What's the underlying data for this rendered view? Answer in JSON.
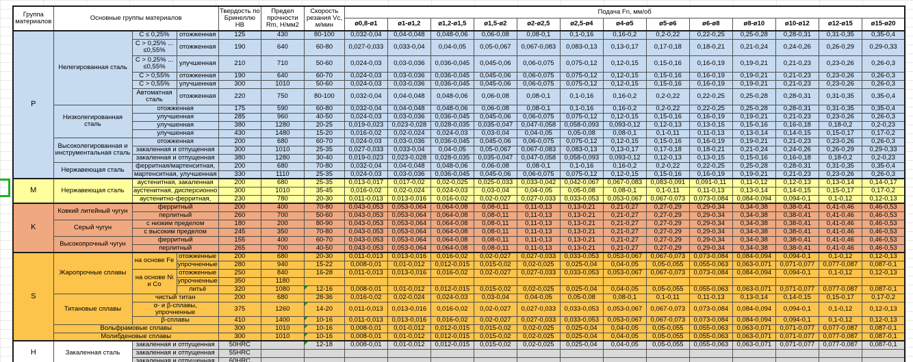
{
  "header": {
    "col_group": "Группа материалов",
    "col_main": "Основные группы материалов",
    "col_hardness": "Твердость по Бринеллю HB",
    "col_strength": "Предел прочности Rm, Н/мм2",
    "col_speed": "Скорость резания Vc, м/мин",
    "feed_title": "Подача Fn, мм/об",
    "diameters": [
      "ø0,8-ø1",
      "ø1-ø1,2",
      "ø1,2-ø1,5",
      "ø1,5-ø2",
      "ø2-ø2,5",
      "ø2,5-ø4",
      "ø4-ø5",
      "ø5-ø6",
      "ø6-ø8",
      "ø8-ø10",
      "ø10-ø12",
      "ø12-ø15",
      "ø15-ø20"
    ]
  },
  "group_colors": {
    "P": "#c6daf0",
    "M": "#ffff9e",
    "K": "#efa880",
    "S": "#fcc44b",
    "H": "#d9d9d9"
  },
  "flag_color": "#0c9a0c",
  "feed_patterns": {
    "A": [
      "0,032-0,04",
      "0,04-0,048",
      "0,048-0,06",
      "0,06-0,08",
      "0,08-0,1",
      "0,1-0,16",
      "0,16-0,2",
      "0,2-0,22",
      "0,22-0,25",
      "0,25-0,28",
      "0,28-0,31",
      "0,31-0,35",
      "0,35-0,4"
    ],
    "B": [
      "0,027-0,033",
      "0,033-0,04",
      "0,04-0,05",
      "0,05-0,067",
      "0,067-0,083",
      "0,083-0,13",
      "0,13-0,17",
      "0,17-0,18",
      "0,18-0,21",
      "0,21-0,24",
      "0,24-0,26",
      "0,26-0,29",
      "0,29-0,33"
    ],
    "C": [
      "0,024-0,03",
      "0,03-0,036",
      "0,036-0,045",
      "0,045-0,06",
      "0,06-0,075",
      "0,075-0,12",
      "0,12-0,15",
      "0,15-0,16",
      "0,16-0,19",
      "0,19-0,21",
      "0,21-0,23",
      "0,23-0,26",
      "0,26-0,3"
    ],
    "D": [
      "0,019-0,023",
      "0,023-0,028",
      "0,028-0,035",
      "0,035-0,047",
      "0,047-0,058",
      "0,058-0,093",
      "0,093-0,12",
      "0,12-0,13",
      "0,13-0,15",
      "0,15-0,16",
      "0,16-0,18",
      "0,18-0,2",
      "0,2-0,23"
    ],
    "E": [
      "0,016-0,02",
      "0,02-0,024",
      "0,024-0,03",
      "0,03-0,04",
      "0,04-0,05",
      "0,05-0,08",
      "0,08-0,1",
      "0,1-0,11",
      "0,11-0,13",
      "0,13-0,14",
      "0,14-0,15",
      "0,15-0,17",
      "0,17-0,2"
    ],
    "M1": [
      "0,013-0,017",
      "0,017-0,02",
      "0,02-0,025",
      "0,025-0,033",
      "0,033-0,042",
      "0,042-0,067",
      "0,067-0,083",
      "0,083-0,091",
      "0,091-0,11",
      "0,11-0,12",
      "0,12-0,13",
      "0,13-0,14",
      "0,14-0,17"
    ],
    "M3": [
      "0,011-0,013",
      "0,013-0,016",
      "0,016-0,02",
      "0,02-0,027",
      "0,027-0,033",
      "0,033-0,053",
      "0,053-0,067",
      "0,067-0,073",
      "0,073-0,084",
      "0,084-0,094",
      "0,094-0,1",
      "0,1-0,12",
      "0,12-0,13"
    ],
    "K": [
      "0,043-0,053",
      "0,053-0,064",
      "0,064-0,08",
      "0,08-0,11",
      "0,11-0,13",
      "0,13-0,21",
      "0,21-0,27",
      "0,27-0,29",
      "0,29-0,34",
      "0,34-0,38",
      "0,38-0,41",
      "0,41-0,46",
      "0,46-0,53"
    ],
    "S2": [
      "0,008-0,01",
      "0,01-0,012",
      "0,012-0,015",
      "0,015-0,02",
      "0,02-0,025",
      "0,025-0,04",
      "0,04-0,05",
      "0,05-0,055",
      "0,055-0,063",
      "0,063-0,071",
      "0,071-0,077",
      "0,077-0,087",
      "0,087-0,1"
    ],
    "E0": [
      "",
      "",
      "",
      "",
      "",
      "",
      "",
      "",
      "",
      "",
      "",
      "",
      ""
    ]
  },
  "rows": [
    {
      "group": "p",
      "cells": [
        [
          "P",
          15,
          1,
          "g"
        ],
        [
          "Нелегированная сталь",
          6,
          1,
          "n"
        ],
        [
          "C ≤ 0,25%",
          1,
          1,
          "s"
        ],
        [
          "отожженная",
          1,
          1,
          "t"
        ]
      ],
      "hb": "125",
      "rm": "430",
      "vc": "80-100",
      "feed": "A"
    },
    {
      "group": "p",
      "tall": true,
      "cells": [
        [
          "C > 0,25% ...\n≤0,55%",
          1,
          1,
          "s"
        ],
        [
          "отожженная",
          1,
          1,
          "t"
        ]
      ],
      "hb": "190",
      "rm": "640",
      "vc": "60-80",
      "feed": "B"
    },
    {
      "group": "p",
      "tall": true,
      "cells": [
        [
          "C > 0,25% ...\n≤0,55%",
          1,
          1,
          "s"
        ],
        [
          "улучшенная",
          1,
          1,
          "t"
        ]
      ],
      "hb": "210",
      "rm": "710",
      "vc": "50-60",
      "feed": "C"
    },
    {
      "group": "p",
      "cells": [
        [
          "C > 0,55%",
          1,
          1,
          "s"
        ],
        [
          "отожженная",
          1,
          1,
          "t"
        ]
      ],
      "hb": "190",
      "rm": "640",
      "vc": "60-70",
      "feed": "C"
    },
    {
      "group": "p",
      "cells": [
        [
          "C > 0,55%",
          1,
          1,
          "s"
        ],
        [
          "улучшенная",
          1,
          1,
          "t"
        ]
      ],
      "hb": "300",
      "rm": "1010",
      "vc": "50-60",
      "feed": "C"
    },
    {
      "group": "p",
      "tall": true,
      "cells": [
        [
          "Автоматная сталь",
          1,
          1,
          "s"
        ],
        [
          "отожженная",
          1,
          1,
          "t"
        ]
      ],
      "hb": "220",
      "rm": "750",
      "vc": "80-100",
      "feed": "A"
    },
    {
      "group": "p",
      "cells": [
        [
          "Низколегированная сталь",
          4,
          1,
          "n"
        ],
        [
          "отожженная",
          1,
          2,
          "t"
        ]
      ],
      "hb": "175",
      "rm": "590",
      "vc": "60-80",
      "feed": "A"
    },
    {
      "group": "p",
      "cells": [
        [
          "улучшенная",
          1,
          2,
          "t"
        ]
      ],
      "hb": "285",
      "rm": "960",
      "vc": "40-50",
      "feed": "C"
    },
    {
      "group": "p",
      "cells": [
        [
          "улучшенная",
          1,
          2,
          "t"
        ]
      ],
      "hb": "380",
      "rm": "1280",
      "vc": "20-25",
      "feed": "D"
    },
    {
      "group": "p",
      "cells": [
        [
          "улучшенная",
          1,
          2,
          "t"
        ]
      ],
      "hb": "430",
      "rm": "1480",
      "vc": "15-20",
      "feed": "E"
    },
    {
      "group": "p",
      "cells": [
        [
          "Высоколегированная и инструментальная сталь",
          3,
          1,
          "n"
        ],
        [
          "отожженная",
          1,
          2,
          "t"
        ]
      ],
      "hb": "200",
      "rm": "680",
      "vc": "60-70",
      "feed": "C"
    },
    {
      "group": "p",
      "cells": [
        [
          "закаленная и отпущенная",
          1,
          2,
          "t"
        ]
      ],
      "hb": "300",
      "rm": "1010",
      "vc": "25-35",
      "feed": "B"
    },
    {
      "group": "p",
      "cells": [
        [
          "закаленная и отпущенная",
          1,
          2,
          "t"
        ]
      ],
      "hb": "380",
      "rm": "1280",
      "vc": "30-40",
      "feed": "D"
    },
    {
      "group": "p",
      "cells": [
        [
          "Нержавеющая сталь",
          2,
          1,
          "n"
        ],
        [
          "ферритная/мартенситная,",
          1,
          2,
          "t"
        ]
      ],
      "hb": "200",
      "rm": "680",
      "vc": "70-80",
      "feed": "A"
    },
    {
      "group": "p",
      "cells": [
        [
          "мартенситная, улучшенная",
          1,
          2,
          "t"
        ]
      ],
      "hb": "330",
      "rm": "1110",
      "vc": "25-35",
      "feed": "C"
    },
    {
      "group": "m",
      "cells": [
        [
          "M",
          3,
          1,
          "g"
        ],
        [
          "Нержавеющая сталь",
          3,
          1,
          "n"
        ],
        [
          "аустенитная, закаленная",
          1,
          2,
          "t"
        ]
      ],
      "hb": "200",
      "rm": "680",
      "vc": "25-35",
      "feed": "M1"
    },
    {
      "group": "m",
      "cells": [
        [
          "аустенитная, дисперсионно",
          1,
          2,
          "t"
        ]
      ],
      "hb": "300",
      "rm": "1010",
      "vc": "35-45",
      "feed": "E"
    },
    {
      "group": "m",
      "cells": [
        [
          "аустенитно-ферритная,",
          1,
          2,
          "t"
        ]
      ],
      "hb": "230",
      "rm": "780",
      "vc": "20-30",
      "feed": "M3"
    },
    {
      "group": "k",
      "cells": [
        [
          "K",
          6,
          1,
          "g"
        ],
        [
          "Ковкий литейный чугун",
          2,
          1,
          "n"
        ],
        [
          "ферритный",
          1,
          2,
          "t"
        ]
      ],
      "hb": "200",
      "rm": "400",
      "vc": "70-80",
      "feed": "K"
    },
    {
      "group": "k",
      "cells": [
        [
          "перлитный",
          1,
          2,
          "t"
        ]
      ],
      "hb": "260",
      "rm": "700",
      "vc": "50-60",
      "feed": "K"
    },
    {
      "group": "k",
      "cells": [
        [
          "Серый чугун",
          2,
          1,
          "n"
        ],
        [
          "с низким пределом",
          1,
          2,
          "t"
        ]
      ],
      "hb": "180",
      "rm": "200",
      "vc": "80-90",
      "feed": "K"
    },
    {
      "group": "k",
      "cells": [
        [
          "с высоким пределом",
          1,
          2,
          "t"
        ]
      ],
      "hb": "245",
      "rm": "350",
      "vc": "70-80",
      "feed": "K"
    },
    {
      "group": "k",
      "cells": [
        [
          "Высокопрочный чугун",
          2,
          1,
          "n"
        ],
        [
          "ферритный",
          1,
          2,
          "t"
        ]
      ],
      "hb": "155",
      "rm": "400",
      "vc": "60-70",
      "feed": "K"
    },
    {
      "group": "k",
      "cells": [
        [
          "перлитный",
          1,
          2,
          "t"
        ]
      ],
      "hb": "265",
      "rm": "700",
      "vc": "40-50",
      "feed": "K"
    },
    {
      "group": "s",
      "cells": [
        [
          "S",
          10,
          1,
          "g"
        ],
        [
          "Жаропрочные сплавы",
          5,
          1,
          "n"
        ],
        [
          "на основе Fe",
          2,
          1,
          "s"
        ],
        [
          "отожженные",
          1,
          1,
          "t"
        ]
      ],
      "hb": "200",
      "rm": "680",
      "vc": "20-30",
      "feed": "M3"
    },
    {
      "group": "s",
      "cells": [
        [
          "упрочненные",
          1,
          1,
          "t"
        ]
      ],
      "hb": "280",
      "rm": "940",
      "vc": "15-22",
      "feed": "S2"
    },
    {
      "group": "s",
      "cells": [
        [
          "на основе Ni и Co",
          3,
          1,
          "s"
        ],
        [
          "отожженные",
          1,
          1,
          "t"
        ]
      ],
      "hb": "250",
      "rm": "840",
      "vc": "16-28",
      "feed": "M3"
    },
    {
      "group": "s",
      "cells": [
        [
          "упрочненные",
          1,
          1,
          "t"
        ]
      ],
      "hb": "350",
      "rm": "1180",
      "vc": "",
      "feed": "E0"
    },
    {
      "group": "s",
      "cells": [
        [
          "литьё",
          1,
          1,
          "t"
        ]
      ],
      "hb": "320",
      "rm": "1080",
      "vc": "12-16",
      "vcflag": true,
      "feed": "S2"
    },
    {
      "group": "s",
      "cells": [
        [
          "Титановые сплавы",
          3,
          1,
          "n"
        ],
        [
          "чистый титан",
          1,
          2,
          "t"
        ]
      ],
      "hb": "200",
      "rm": "680",
      "vc": "28-36",
      "feed": "E"
    },
    {
      "group": "s",
      "cells": [
        [
          "α- и β-сплавы, упрочненные",
          1,
          2,
          "t"
        ]
      ],
      "hb": "375",
      "rm": "1260",
      "vc": "14-20",
      "vcflag": true,
      "feed": "M3"
    },
    {
      "group": "s",
      "cells": [
        [
          "β-сплавы",
          1,
          2,
          "t"
        ]
      ],
      "hb": "410",
      "rm": "1400",
      "vc": "10-16",
      "vcflag": true,
      "feed": "M3"
    },
    {
      "group": "s",
      "cells": [
        [
          "Вольфрамовые сплавы",
          1,
          3,
          "n"
        ]
      ],
      "hb": "300",
      "rm": "1010",
      "vc": "10-16",
      "vcflag": true,
      "feed": "S2"
    },
    {
      "group": "s",
      "cells": [
        [
          "Молибденовые сплавы",
          1,
          3,
          "n"
        ]
      ],
      "hb": "300",
      "rm": "1010",
      "vc": "10-16",
      "vcflag": true,
      "feed": "S2"
    },
    {
      "group": "h",
      "cells": [
        [
          "H",
          3,
          1,
          "gw"
        ],
        [
          "Закаленная сталь",
          3,
          1,
          "nw"
        ],
        [
          "закаленная и отпущенная",
          1,
          2,
          "t"
        ]
      ],
      "hb": "50HRC",
      "rm": "",
      "vc": "12-18",
      "vcflag": true,
      "feed": "S2"
    },
    {
      "group": "h",
      "cells": [
        [
          "закаленная и отпущенная",
          1,
          2,
          "t"
        ]
      ],
      "hb": "55HRC",
      "rm": "",
      "vc": "",
      "feed": "E0"
    },
    {
      "group": "h",
      "cells": [
        [
          "закаленная и отпущенная",
          1,
          2,
          "t"
        ]
      ],
      "hb": "60HRC",
      "rm": "",
      "vc": "",
      "feed": "E0"
    }
  ]
}
